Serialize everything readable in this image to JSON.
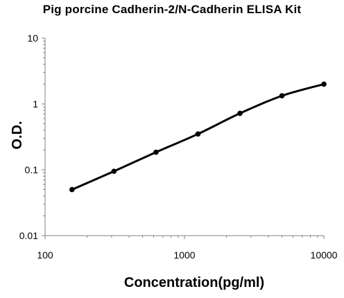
{
  "chart_data": {
    "type": "scatter",
    "title": "Pig porcine Cadherin-2/N-Cadherin  ELISA Kit",
    "xlabel": "Concentration(pg/ml)",
    "ylabel": "O.D.",
    "x_scale": "log",
    "y_scale": "log",
    "xlim": [
      100,
      10000
    ],
    "ylim": [
      0.01,
      10
    ],
    "x_ticks": [
      "100",
      "1000",
      "10000"
    ],
    "y_ticks": [
      "10",
      "1",
      "0.1",
      "0.01"
    ],
    "grid": false,
    "legend": "none",
    "series": [
      {
        "x": [
          156,
          312,
          625,
          1250,
          2500,
          5000,
          10000
        ],
        "y": [
          0.05,
          0.095,
          0.185,
          0.35,
          0.72,
          1.33,
          2.0
        ]
      }
    ],
    "colors": {
      "line": "#000000",
      "marker": "#000000",
      "axis": "#808080"
    }
  }
}
